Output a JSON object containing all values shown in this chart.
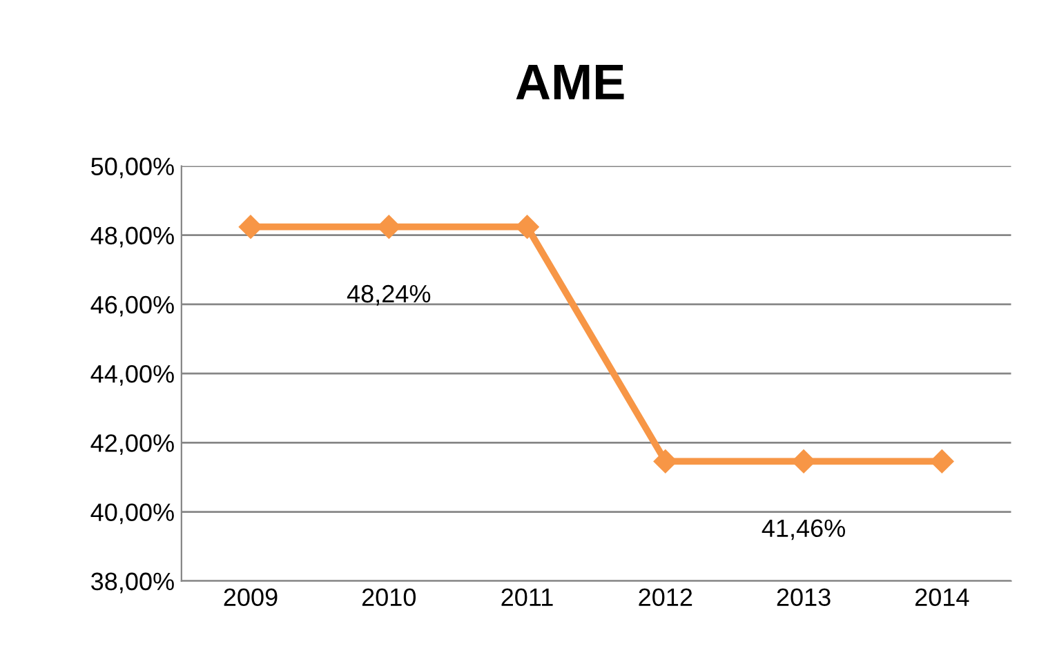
{
  "chart_data": {
    "type": "line",
    "title": "AME",
    "categories": [
      "2009",
      "2010",
      "2011",
      "2012",
      "2013",
      "2014"
    ],
    "series": [
      {
        "color": "#f79646",
        "values": [
          48.24,
          48.24,
          48.24,
          41.46,
          41.46,
          41.46
        ],
        "value_labels": [
          null,
          "48,24%",
          null,
          null,
          "41,46%",
          null
        ]
      }
    ],
    "ylim": [
      38,
      50
    ],
    "yticks": [
      {
        "value": 38,
        "label": "38,00%"
      },
      {
        "value": 40,
        "label": "40,00%"
      },
      {
        "value": 42,
        "label": "42,00%"
      },
      {
        "value": 44,
        "label": "44,00%"
      },
      {
        "value": 46,
        "label": "46,00%"
      },
      {
        "value": 48,
        "label": "48,00%"
      },
      {
        "value": 50,
        "label": "50,00%"
      }
    ],
    "grid": "y",
    "marker": "diamond",
    "line_style": "solid",
    "legend": false
  }
}
